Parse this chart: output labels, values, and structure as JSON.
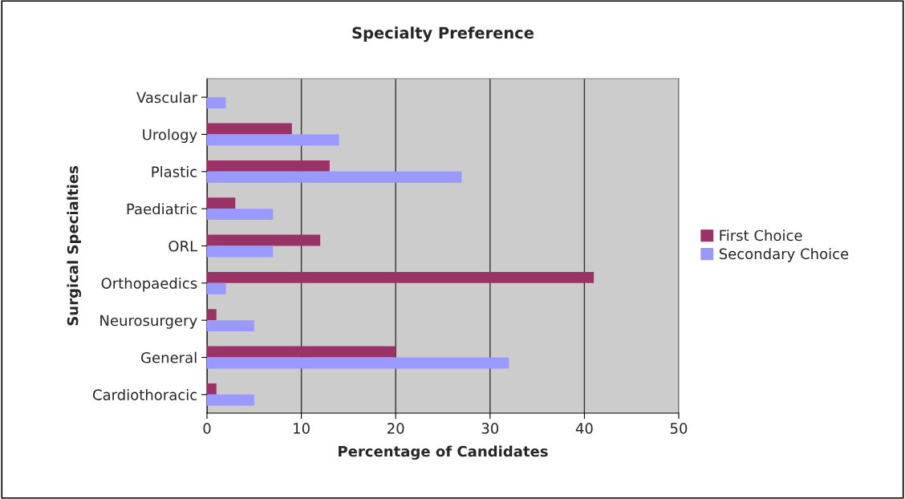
{
  "chart_data": {
    "type": "bar",
    "orientation": "horizontal",
    "title": "Specialty Preference",
    "xlabel": "Percentage of Candidates",
    "ylabel": "Surgical Specialties",
    "categories": [
      "Vascular",
      "Urology",
      "Plastic",
      "Paediatric",
      "ORL",
      "Orthopaedics",
      "Neurosurgery",
      "General",
      "Cardiothoracic"
    ],
    "series": [
      {
        "name": "First Choice",
        "color": "#993366",
        "values": [
          null,
          9,
          13,
          3,
          12,
          41,
          1,
          20,
          1
        ]
      },
      {
        "name": "Secondary Choice",
        "color": "#9999ff",
        "values": [
          2,
          14,
          27,
          7,
          7,
          2,
          5,
          32,
          5
        ]
      }
    ],
    "xlim": [
      0,
      50
    ],
    "xticks": [
      0,
      10,
      20,
      30,
      40,
      50
    ],
    "grid": "x",
    "legend": "right"
  }
}
